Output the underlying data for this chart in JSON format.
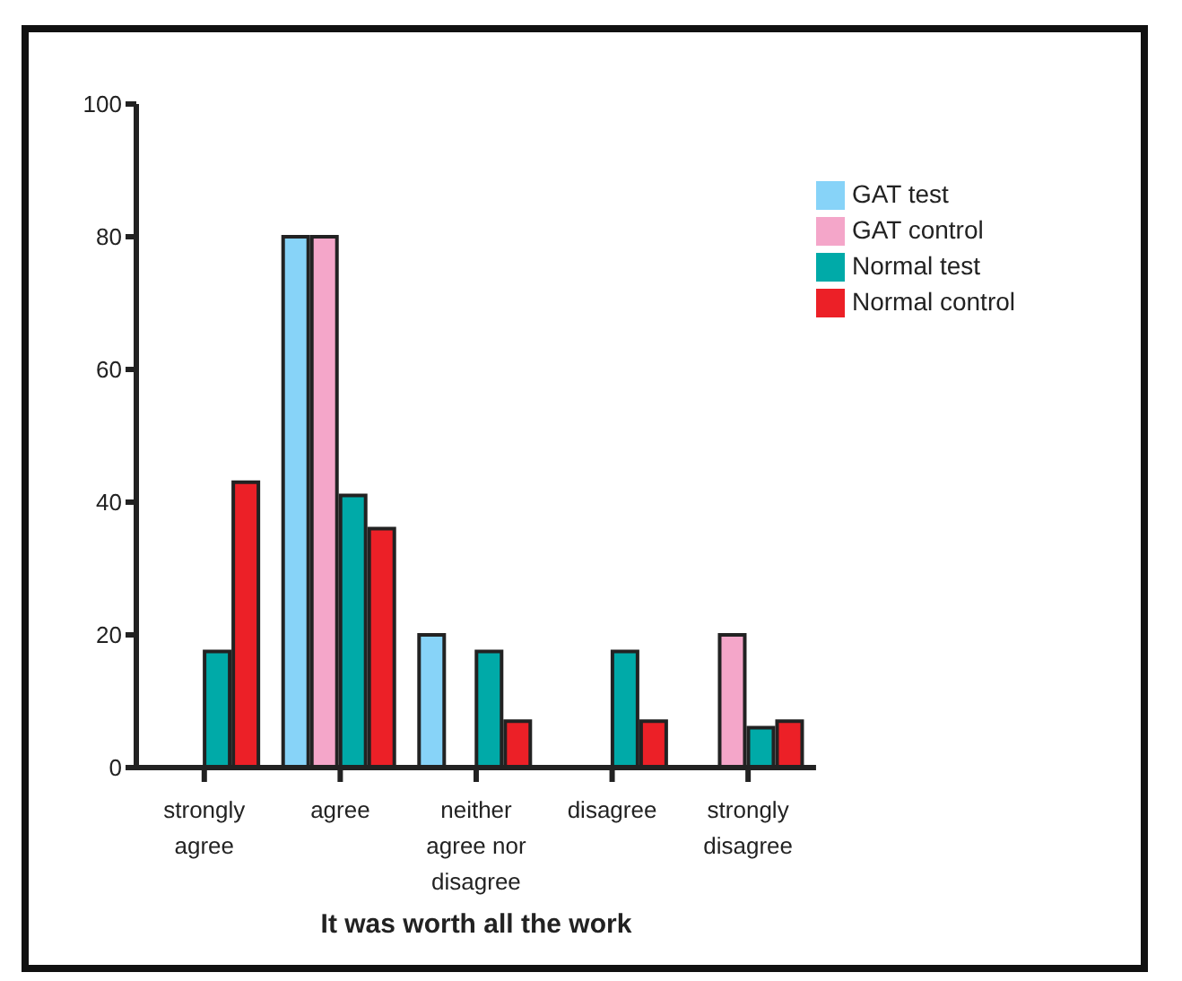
{
  "chart_data": {
    "type": "bar",
    "xlabel": "It was worth all the work",
    "categories": [
      "strongly agree",
      "agree",
      "neither agree nor disagree",
      "disagree",
      "strongly disagree"
    ],
    "series": [
      {
        "name": "GAT test",
        "color": "#87d3f8",
        "values": [
          0,
          80,
          20,
          0,
          0
        ]
      },
      {
        "name": "GAT control",
        "color": "#f4a6c9",
        "values": [
          0,
          80,
          0,
          0,
          20
        ]
      },
      {
        "name": "Normal test",
        "color": "#00aaa8",
        "values": [
          17.5,
          41,
          17.5,
          17.5,
          6
        ]
      },
      {
        "name": "Normal control",
        "color": "#ec2027",
        "values": [
          43,
          36,
          7,
          7,
          7
        ]
      }
    ],
    "ylim": [
      0,
      100
    ],
    "yticks": [
      0,
      20,
      40,
      60,
      80,
      100
    ],
    "grid": false,
    "legend": "top right"
  }
}
